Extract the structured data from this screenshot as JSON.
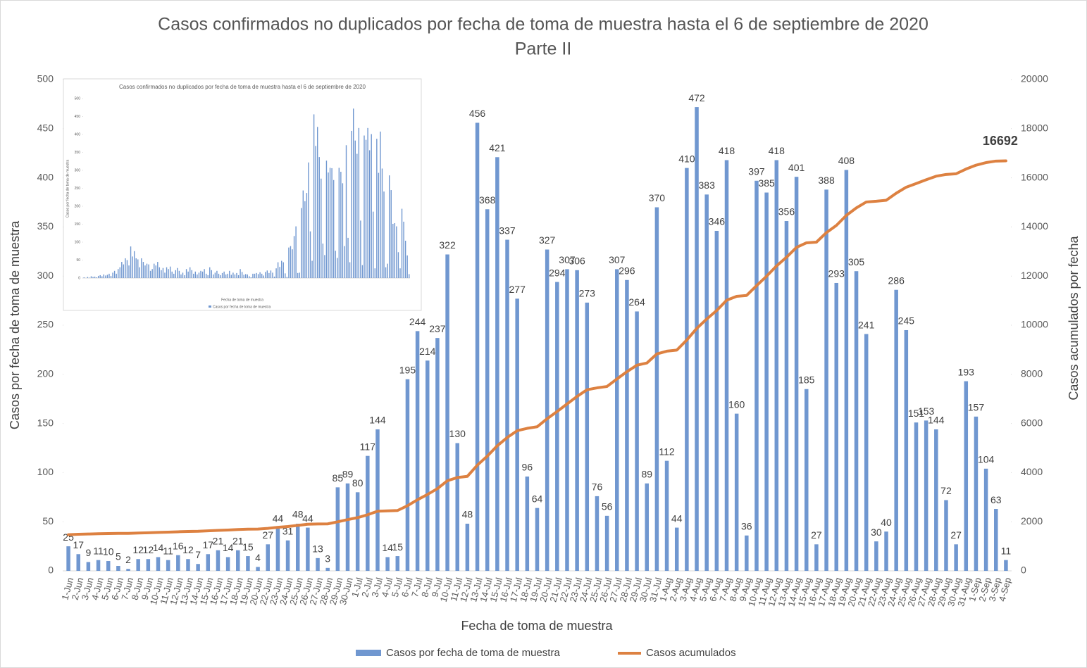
{
  "chart_data": [
    {
      "type": "bar",
      "title": "Casos confirmados no duplicados por fecha de toma de muestra hasta el 6 de septiembre de 2020",
      "subtitle": "Parte II",
      "x_label": "Fecha de toma de muestra",
      "y_label": "Casos por fecha de toma de muestra",
      "y2_label": "Casos acumulados por fecha",
      "categories": [
        "1-Jun",
        "2-Jun",
        "3-Jun",
        "4-Jun",
        "5-Jun",
        "6-Jun",
        "7-Jun",
        "8-Jun",
        "9-Jun",
        "10-Jun",
        "11-Jun",
        "12-Jun",
        "13-Jun",
        "14-Jun",
        "15-Jun",
        "16-Jun",
        "17-Jun",
        "18-Jun",
        "19-Jun",
        "20-Jun",
        "22-Jun",
        "23-Jun",
        "24-Jun",
        "25-Jun",
        "26-Jun",
        "27-Jun",
        "28-Jun",
        "29-Jun",
        "30-Jun",
        "1-Jul",
        "2-Jul",
        "3-Jul",
        "4-Jul",
        "5-Jul",
        "6-Jul",
        "7-Jul",
        "8-Jul",
        "9-Jul",
        "10-Jul",
        "11-Jul",
        "12-Jul",
        "13-Jul",
        "14-Jul",
        "15-Jul",
        "16-Jul",
        "17-Jul",
        "18-Jul",
        "19-Jul",
        "20-Jul",
        "21-Jul",
        "22-Jul",
        "23-Jul",
        "24-Jul",
        "25-Jul",
        "26-Jul",
        "27-Jul",
        "28-Jul",
        "29-Jul",
        "30-Jul",
        "31-Jul",
        "1-Aug",
        "2-Aug",
        "3-Aug",
        "4-Aug",
        "5-Aug",
        "6-Aug",
        "7-Aug",
        "8-Aug",
        "9-Aug",
        "10-Aug",
        "11-Aug",
        "12-Aug",
        "13-Aug",
        "14-Aug",
        "15-Aug",
        "16-Aug",
        "17-Aug",
        "18-Aug",
        "19-Aug",
        "20-Aug",
        "21-Aug",
        "22-Aug",
        "23-Aug",
        "24-Aug",
        "25-Aug",
        "26-Aug",
        "27-Aug",
        "28-Aug",
        "29-Aug",
        "30-Aug",
        "31-Aug",
        "1-Sep",
        "2-Sep",
        "3-Sep",
        "4-Sep"
      ],
      "series": [
        {
          "name": "Casos por fecha de toma de muestra",
          "type": "bar",
          "color": "#7097d0",
          "values": [
            25,
            17,
            9,
            11,
            10,
            5,
            2,
            12,
            12,
            14,
            11,
            16,
            12,
            7,
            17,
            21,
            14,
            21,
            15,
            4,
            27,
            44,
            31,
            48,
            44,
            13,
            3,
            85,
            89,
            80,
            117,
            144,
            14,
            15,
            195,
            244,
            214,
            237,
            322,
            130,
            48,
            456,
            368,
            421,
            337,
            277,
            96,
            64,
            327,
            294,
            307,
            306,
            273,
            76,
            56,
            307,
            296,
            264,
            89,
            370,
            112,
            44,
            410,
            472,
            383,
            346,
            418,
            160,
            36,
            397,
            385,
            418,
            356,
            401,
            185,
            27,
            388,
            293,
            408,
            305,
            241,
            30,
            40,
            286,
            245,
            151,
            153,
            144,
            72,
            27,
            193,
            157,
            104,
            63,
            11
          ]
        },
        {
          "name": "Casos acumulados",
          "type": "line",
          "axis": "y2",
          "color": "#dd8141",
          "values": [
            1473,
            1490,
            1499,
            1510,
            1520,
            1525,
            1527,
            1539,
            1551,
            1565,
            1576,
            1592,
            1604,
            1611,
            1628,
            1649,
            1663,
            1684,
            1699,
            1703,
            1730,
            1774,
            1805,
            1853,
            1897,
            1910,
            1913,
            1998,
            2087,
            2167,
            2284,
            2428,
            2442,
            2457,
            2652,
            2896,
            3110,
            3347,
            3669,
            3799,
            3847,
            4303,
            4671,
            5092,
            5429,
            5706,
            5802,
            5866,
            6193,
            6487,
            6794,
            7100,
            7373,
            7449,
            7505,
            7812,
            8108,
            8372,
            8461,
            8831,
            8943,
            8987,
            9397,
            9869,
            10252,
            10598,
            11016,
            11176,
            11212,
            11609,
            11994,
            12412,
            12768,
            13169,
            13354,
            13381,
            13769,
            14062,
            14470,
            14775,
            15016,
            15046,
            15086,
            15372,
            15617,
            15768,
            15921,
            16065,
            16137,
            16164,
            16357,
            16514,
            16618,
            16681,
            16692
          ]
        }
      ],
      "ylim": [
        0,
        500
      ],
      "yticks": [
        0,
        50,
        100,
        150,
        200,
        250,
        300,
        350,
        400,
        450,
        500
      ],
      "y2lim": [
        0,
        20000
      ],
      "y2ticks": [
        0,
        2000,
        4000,
        6000,
        8000,
        10000,
        12000,
        14000,
        16000,
        18000,
        20000
      ],
      "legend": "bottom"
    },
    {
      "type": "bar",
      "title": "Casos confirmados no duplicados por fecha de toma de muestra hasta el 6 de septiembre de 2020",
      "x_label": "Fecha de toma de muestra",
      "y_label": "Casos por fecha de toma de muestra",
      "series": [
        {
          "name": "Casos por fecha de toma de muestra",
          "type": "bar",
          "color": "#7097d0",
          "values": [
            2,
            0,
            3,
            1,
            5,
            3,
            4,
            2,
            6,
            8,
            5,
            10,
            7,
            9,
            12,
            6,
            15,
            20,
            12,
            25,
            30,
            45,
            38,
            55,
            50,
            35,
            88,
            60,
            75,
            55,
            52,
            30,
            55,
            45,
            35,
            40,
            38,
            20,
            25,
            40,
            35,
            45,
            30,
            22,
            28,
            15,
            30,
            25,
            32,
            18,
            12,
            22,
            28,
            20,
            10,
            15,
            8,
            25,
            18,
            30,
            22,
            12,
            18,
            10,
            15,
            20,
            18,
            25,
            12,
            8,
            30,
            22,
            10,
            15,
            20,
            12,
            8,
            14,
            18,
            10,
            12,
            20,
            9,
            15,
            10,
            14,
            8,
            25,
            17,
            9,
            11,
            10,
            5,
            2,
            12,
            12,
            14,
            11,
            16,
            12,
            7,
            17,
            21,
            14,
            21,
            15,
            4,
            27,
            44,
            31,
            48,
            44,
            13,
            3,
            85,
            89,
            80,
            117,
            144,
            14,
            15,
            195,
            244,
            214,
            237,
            322,
            130,
            48,
            456,
            368,
            421,
            337,
            277,
            96,
            64,
            327,
            294,
            307,
            306,
            273,
            76,
            56,
            307,
            296,
            264,
            89,
            370,
            112,
            44,
            410,
            472,
            383,
            346,
            418,
            160,
            36,
            397,
            385,
            418,
            356,
            401,
            185,
            27,
            388,
            293,
            408,
            305,
            241,
            30,
            40,
            286,
            245,
            151,
            153,
            144,
            72,
            27,
            193,
            157,
            104,
            63,
            11
          ]
        }
      ],
      "ylim": [
        0,
        500
      ],
      "yticks": [
        0,
        50,
        100,
        150,
        200,
        250,
        300,
        350,
        400,
        450,
        500
      ],
      "legend": "bottom"
    }
  ]
}
